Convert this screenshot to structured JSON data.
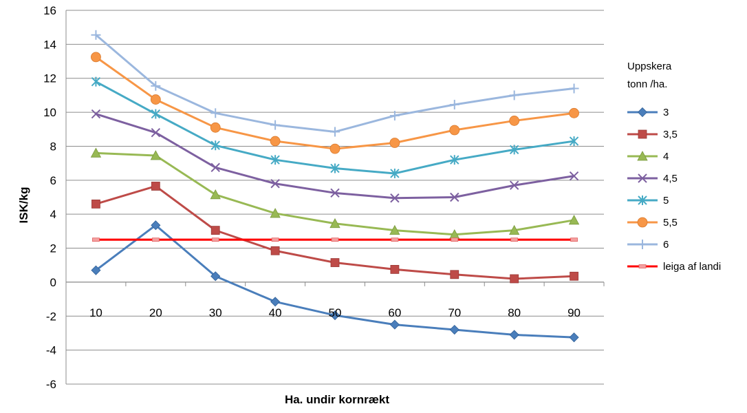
{
  "chart_data": {
    "type": "line",
    "title": "",
    "xlabel": "Ha. undir kornrækt",
    "ylabel": "ISK/kg",
    "categories": [
      "10",
      "20",
      "30",
      "40",
      "50",
      "60",
      "70",
      "80",
      "90"
    ],
    "ylim": [
      -6,
      16
    ],
    "y_ticks": [
      16,
      14,
      12,
      10,
      8,
      6,
      4,
      2,
      0,
      -2,
      -4,
      -6
    ],
    "grid": "horizontal",
    "legend_title": [
      "Uppskera",
      "tonn /ha."
    ],
    "legend_position": "right",
    "series": [
      {
        "name": "3",
        "color": "#4a7ebb",
        "marker": "diamond",
        "values": [
          0.7,
          3.35,
          0.35,
          -1.15,
          -1.95,
          -2.5,
          -2.8,
          -3.1,
          -3.25
        ]
      },
      {
        "name": "3,5",
        "color": "#be4b48",
        "marker": "square",
        "values": [
          4.6,
          5.65,
          3.05,
          1.85,
          1.15,
          0.75,
          0.45,
          0.2,
          0.35
        ]
      },
      {
        "name": "4",
        "color": "#98b954",
        "marker": "triangle",
        "values": [
          7.6,
          7.45,
          5.15,
          4.05,
          3.45,
          3.05,
          2.8,
          3.05,
          3.65
        ]
      },
      {
        "name": "4,5",
        "color": "#7d60a0",
        "marker": "x",
        "values": [
          9.9,
          8.8,
          6.75,
          5.8,
          5.25,
          4.95,
          5.0,
          5.7,
          6.25
        ]
      },
      {
        "name": "5",
        "color": "#46aac5",
        "marker": "star",
        "values": [
          11.8,
          9.9,
          8.05,
          7.2,
          6.7,
          6.4,
          7.2,
          7.8,
          8.3
        ]
      },
      {
        "name": "5,5",
        "color": "#f79646",
        "marker": "circle",
        "values": [
          13.25,
          10.75,
          9.1,
          8.3,
          7.85,
          8.2,
          8.95,
          9.5,
          9.95
        ]
      },
      {
        "name": "6",
        "color": "#9bb7de",
        "marker": "plus",
        "values": [
          14.55,
          11.55,
          9.95,
          9.25,
          8.85,
          9.8,
          10.45,
          11.0,
          11.4
        ]
      },
      {
        "name": "leiga af landi",
        "color": "#ff0000",
        "marker": "dash",
        "values": [
          2.5,
          2.5,
          2.5,
          2.5,
          2.5,
          2.5,
          2.5,
          2.5,
          2.5
        ]
      }
    ]
  }
}
